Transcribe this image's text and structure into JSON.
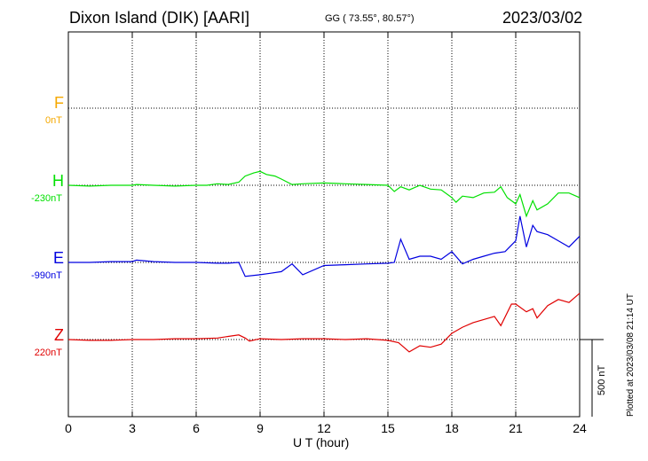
{
  "header": {
    "station": "Dixon Island (DIK)  [AARI]",
    "coords": "GG ( 73.55°,  80.57°)",
    "date": "2023/03/02"
  },
  "footer": {
    "plotted": "Plotted at 2023/03/08 21:14 UT",
    "scale": "500 nT"
  },
  "components": [
    {
      "name": "F",
      "baseline": "0nT",
      "color": "#f5a800"
    },
    {
      "name": "H",
      "baseline": "-230nT",
      "color": "#00e000"
    },
    {
      "name": "E",
      "baseline": "-990nT",
      "color": "#0000e0"
    },
    {
      "name": "Z",
      "baseline": "220nT",
      "color": "#e00000"
    }
  ],
  "chart_data": {
    "type": "line",
    "title": "Dixon Island (DIK)  [AARI]",
    "xlabel": "U T (hour)",
    "ylabel": "",
    "xlim": [
      0,
      24
    ],
    "xticks": [
      "0",
      "3",
      "6",
      "9",
      "12",
      "15",
      "18",
      "21",
      "24"
    ],
    "scale_bar_nT": 500,
    "series": [
      {
        "name": "F",
        "color": "#f5a800",
        "x": [],
        "y": []
      },
      {
        "name": "H",
        "color": "#00e000",
        "x": [
          0,
          1,
          2,
          3,
          3.2,
          4,
          5,
          6,
          6.5,
          7,
          7.5,
          8,
          8.3,
          8.7,
          9,
          9.3,
          9.7,
          10,
          10.5,
          11,
          12,
          13,
          14,
          15,
          15.3,
          15.6,
          16,
          16.5,
          17,
          17.5,
          18,
          18.2,
          18.5,
          19,
          19.5,
          20,
          20.3,
          20.6,
          21,
          21.2,
          21.5,
          21.8,
          22,
          22.5,
          23,
          23.5,
          24
        ],
        "y": [
          0,
          -5,
          0,
          0,
          5,
          0,
          -5,
          0,
          0,
          10,
          5,
          20,
          60,
          80,
          90,
          70,
          60,
          40,
          5,
          10,
          15,
          10,
          5,
          0,
          -40,
          -10,
          -30,
          0,
          -25,
          -30,
          -80,
          -110,
          -70,
          -80,
          -50,
          -45,
          -10,
          -80,
          -120,
          -60,
          -200,
          -100,
          -160,
          -120,
          -50,
          -50,
          -80
        ]
      },
      {
        "name": "E",
        "color": "#0000e0",
        "x": [
          0,
          1,
          2,
          3,
          3.2,
          4,
          5,
          6,
          7,
          7.5,
          8,
          8.3,
          9,
          9.5,
          10,
          10.5,
          11,
          12,
          13,
          14,
          15,
          15.3,
          15.6,
          16,
          16.5,
          17,
          17.5,
          18,
          18.5,
          19,
          19.5,
          20,
          20.5,
          21,
          21.2,
          21.5,
          21.8,
          22,
          22.5,
          23,
          23.5,
          24
        ],
        "y": [
          0,
          0,
          5,
          5,
          15,
          5,
          0,
          0,
          -5,
          -5,
          0,
          -90,
          -80,
          -70,
          -60,
          -10,
          -80,
          -20,
          -15,
          -10,
          -5,
          0,
          150,
          20,
          40,
          40,
          20,
          70,
          -10,
          20,
          40,
          60,
          70,
          140,
          300,
          100,
          240,
          200,
          180,
          140,
          100,
          170
        ]
      },
      {
        "name": "Z",
        "color": "#e00000",
        "x": [
          0,
          1,
          2,
          3,
          4,
          5,
          6,
          7,
          7.5,
          8,
          8.3,
          8.5,
          9,
          10,
          11,
          12,
          13,
          14,
          15,
          15.5,
          16,
          16.5,
          17,
          17.5,
          18,
          18.5,
          19,
          19.5,
          20,
          20.3,
          20.8,
          21,
          21.5,
          21.8,
          22,
          22.5,
          23,
          23.5,
          24
        ],
        "y": [
          0,
          -5,
          -5,
          0,
          0,
          5,
          5,
          10,
          20,
          30,
          10,
          -10,
          5,
          0,
          5,
          5,
          0,
          5,
          -5,
          -20,
          -80,
          -40,
          -50,
          -30,
          40,
          80,
          110,
          130,
          150,
          90,
          230,
          230,
          180,
          200,
          140,
          220,
          260,
          240,
          300
        ]
      }
    ]
  }
}
